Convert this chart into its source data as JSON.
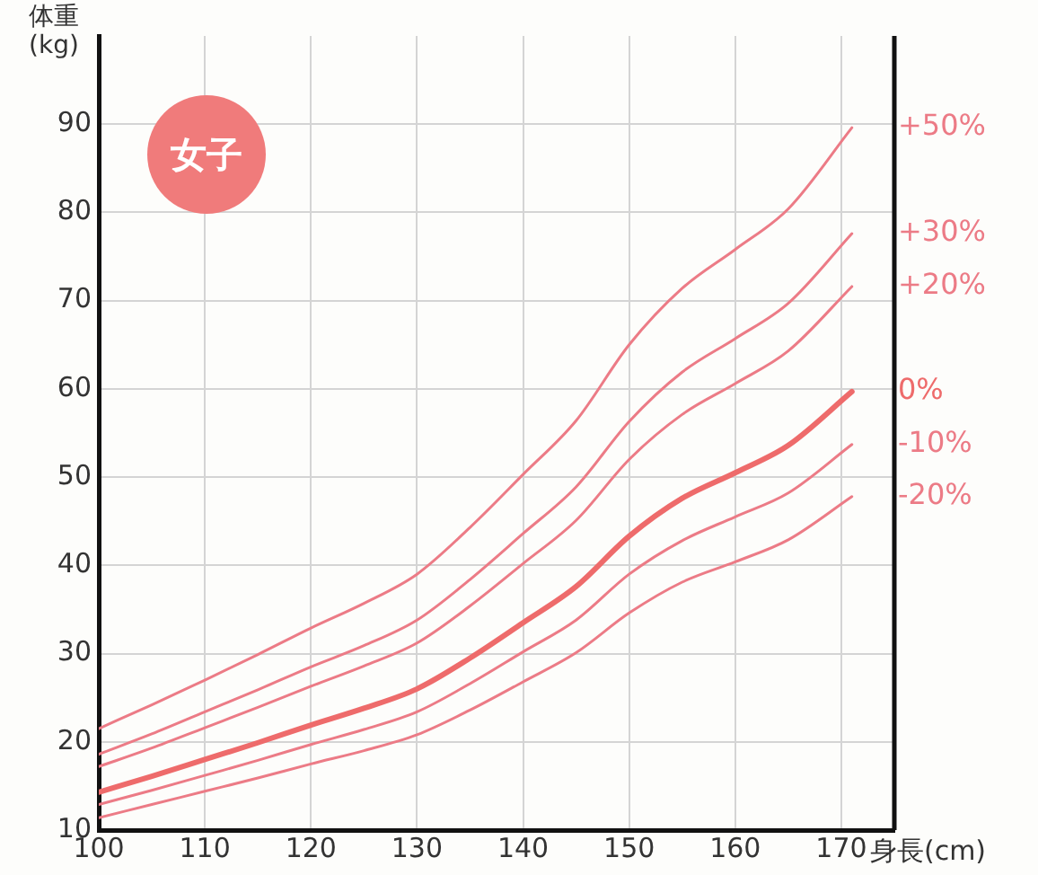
{
  "chart_data": {
    "type": "line",
    "xlabel": "身長(cm)",
    "ylabel": "体重\n(kg)",
    "annotations": [
      "女子"
    ],
    "x": [
      100,
      105,
      110,
      115,
      120,
      125,
      130,
      135,
      140,
      145,
      150,
      155,
      160,
      165,
      171
    ],
    "xlim": [
      100,
      175
    ],
    "xticks": [
      100,
      110,
      120,
      130,
      140,
      150,
      160,
      170
    ],
    "ylim": [
      10,
      100
    ],
    "yticks": [
      10,
      20,
      30,
      40,
      50,
      60,
      70,
      80,
      90
    ],
    "grid": true,
    "legend": false,
    "marker": "none",
    "line_style": "solid",
    "series": [
      {
        "name": "+50%",
        "color": "#ec7b86",
        "values": [
          21.5,
          24.2,
          27.0,
          29.9,
          32.9,
          35.7,
          39.0,
          44.3,
          50.3,
          56.4,
          65.0,
          71.4,
          75.8,
          80.4,
          89.6
        ]
      },
      {
        "name": "+30%",
        "color": "#ec7b86",
        "values": [
          18.6,
          20.9,
          23.4,
          25.9,
          28.5,
          30.9,
          33.8,
          38.4,
          43.6,
          48.9,
          56.3,
          61.9,
          65.7,
          69.7,
          77.6
        ]
      },
      {
        "name": "+20%",
        "color": "#ec7b86",
        "values": [
          17.2,
          19.3,
          21.6,
          23.9,
          26.3,
          28.6,
          31.2,
          35.4,
          40.2,
          45.1,
          52.0,
          57.1,
          60.6,
          64.3,
          71.6
        ]
      },
      {
        "name": "0%",
        "color": "#ee6b6b",
        "values": [
          14.3,
          16.1,
          18.0,
          19.9,
          21.9,
          23.8,
          26.0,
          29.5,
          33.5,
          37.6,
          43.3,
          47.6,
          50.5,
          53.6,
          59.7
        ]
      },
      {
        "name": "-10%",
        "color": "#ec7b86",
        "values": [
          12.9,
          14.5,
          16.2,
          17.9,
          19.7,
          21.4,
          23.4,
          26.6,
          30.2,
          33.8,
          39.0,
          42.8,
          45.5,
          48.2,
          53.7
        ]
      },
      {
        "name": "-20%",
        "color": "#ec7b86",
        "values": [
          11.4,
          12.9,
          14.4,
          15.9,
          17.5,
          19.0,
          20.8,
          23.6,
          26.8,
          30.1,
          34.6,
          38.1,
          40.4,
          42.9,
          47.8
        ]
      }
    ]
  }
}
